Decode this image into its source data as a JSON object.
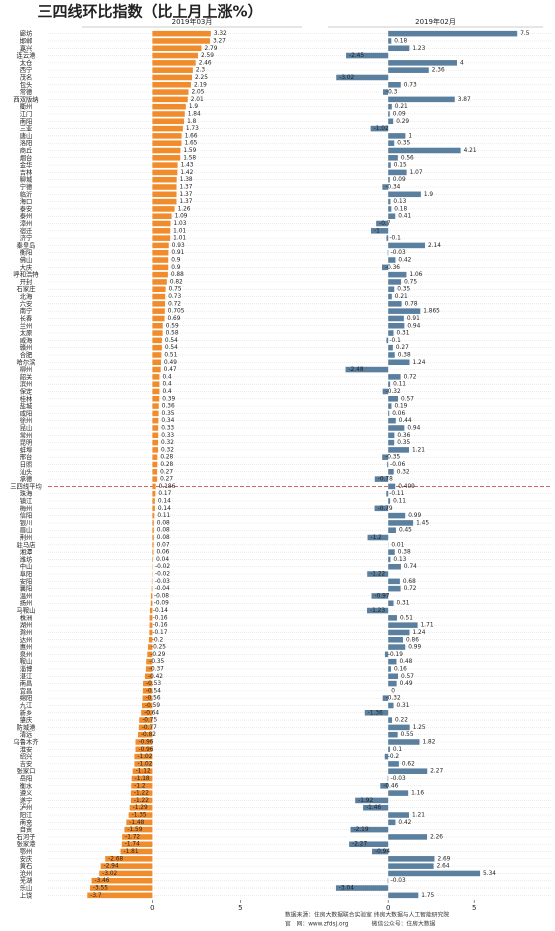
{
  "chart_data": {
    "type": "hbar",
    "title": "三四线环比指数（比上月上涨%）",
    "categories": [
      "廊坊",
      "邯郸",
      "嘉兴",
      "连云港",
      "太仓",
      "西宁",
      "茂名",
      "包头",
      "常德",
      "西双版纳",
      "衢州",
      "江门",
      "南阳",
      "三亚",
      "唐山",
      "洛阳",
      "商丘",
      "烟台",
      "金华",
      "吉林",
      "聊城",
      "宁德",
      "临沂",
      "海口",
      "泰安",
      "泰州",
      "漳州",
      "宿迁",
      "济宁",
      "秦皇岛",
      "衡阳",
      "佛山",
      "大庆",
      "呼和浩特",
      "开封",
      "石家庄",
      "北海",
      "六安",
      "南宁",
      "长春",
      "兰州",
      "太原",
      "威海",
      "赣州",
      "合肥",
      "哈尔滨",
      "柳州",
      "韶关",
      "滨州",
      "保定",
      "桂林",
      "盐城",
      "咸阳",
      "徐州",
      "昆山",
      "常州",
      "昆明",
      "蚌埠",
      "邢台",
      "日照",
      "汕头",
      "承德",
      "三四线平均",
      "珠海",
      "镇江",
      "梅州",
      "信阳",
      "银川",
      "眉山",
      "荆州",
      "驻马店",
      "湘潭",
      "潍坊",
      "中山",
      "阜阳",
      "安阳",
      "襄阳",
      "温州",
      "扬州",
      "马鞍山",
      "株洲",
      "湖州",
      "滁州",
      "达州",
      "惠州",
      "泉州",
      "鞍山",
      "淄博",
      "湛江",
      "南昌",
      "宜昌",
      "绵阳",
      "九江",
      "新乡",
      "肇庆",
      "防城港",
      "清远",
      "乌鲁木齐",
      "淮安",
      "绍兴",
      "吉安",
      "张家口",
      "岳阳",
      "衡水",
      "遵义",
      "遂宁",
      "泸州",
      "阳江",
      "南充",
      "自贡",
      "石河子",
      "张家港",
      "鄂州",
      "安庆",
      "黄石",
      "沧州",
      "芜湖",
      "乐山",
      "上饶"
    ],
    "highlight_index": 62,
    "series": [
      {
        "name": "2019年03月",
        "color": "#f08c2c",
        "xlim": [
          -4,
          8.5
        ],
        "xticks": [
          0,
          5
        ],
        "values": [
          3.32,
          3.27,
          2.79,
          2.59,
          2.46,
          2.3,
          2.25,
          2.19,
          2.05,
          2.01,
          1.9,
          1.84,
          1.8,
          1.73,
          1.66,
          1.65,
          1.59,
          1.58,
          1.43,
          1.42,
          1.38,
          1.37,
          1.37,
          1.37,
          1.26,
          1.09,
          1.03,
          1.01,
          1.01,
          0.93,
          0.91,
          0.9,
          0.9,
          0.88,
          0.82,
          0.75,
          0.73,
          0.72,
          0.705,
          0.69,
          0.59,
          0.58,
          0.54,
          0.54,
          0.51,
          0.49,
          0.47,
          0.4,
          0.4,
          0.4,
          0.39,
          0.36,
          0.35,
          0.34,
          0.33,
          0.33,
          0.32,
          0.32,
          0.28,
          0.28,
          0.27,
          0.27,
          0.186,
          0.17,
          0.14,
          0.14,
          0.11,
          0.08,
          0.08,
          0.08,
          0.07,
          0.06,
          0.04,
          -0.02,
          -0.02,
          -0.03,
          -0.04,
          -0.08,
          -0.09,
          -0.14,
          -0.16,
          -0.16,
          -0.17,
          -0.2,
          -0.25,
          -0.29,
          -0.35,
          -0.37,
          -0.42,
          -0.53,
          -0.54,
          -0.56,
          -0.59,
          -0.64,
          -0.75,
          -0.77,
          -0.82,
          -0.96,
          -0.96,
          -1.02,
          -1.02,
          -1.12,
          -1.18,
          -1.2,
          -1.22,
          -1.22,
          -1.29,
          -1.35,
          -1.48,
          -1.59,
          -1.72,
          -1.74,
          -1.81,
          -2.68,
          -2.94,
          -3.02,
          -3.46,
          -3.55,
          -3.7
        ]
      },
      {
        "name": "2019年02月",
        "color": "#5b7f9e",
        "xlim": [
          -3.5,
          9
        ],
        "xticks": [
          0,
          5
        ],
        "values": [
          7.5,
          0.18,
          1.23,
          -2.45,
          4,
          2.36,
          -3.02,
          0.73,
          -0.3,
          3.87,
          0.21,
          0.09,
          0.29,
          -1.02,
          1,
          0.35,
          4.21,
          0.56,
          0.15,
          1.07,
          0.09,
          -0.34,
          1.9,
          0.13,
          0.18,
          0.41,
          -0.7,
          -1,
          -0.1,
          2.14,
          -0.03,
          0.42,
          -0.36,
          1.06,
          0.75,
          0.35,
          0.21,
          0.78,
          1.865,
          0.91,
          0.94,
          0.31,
          -0.1,
          0.27,
          0.38,
          1.24,
          -2.48,
          0.72,
          0.11,
          -0.32,
          0.57,
          0.19,
          0.06,
          0.44,
          0.94,
          0.36,
          0.35,
          1.21,
          -0.35,
          -0.06,
          0.32,
          -0.78,
          0.409,
          -0.11,
          0.11,
          -0.79,
          0.99,
          1.45,
          0.45,
          -1.2,
          0.01,
          0.38,
          0.13,
          0.74,
          -1.22,
          0.68,
          0.72,
          -0.97,
          0.31,
          -1.23,
          0.51,
          1.71,
          1.24,
          0.86,
          0.99,
          -0.19,
          0.48,
          0.16,
          0.57,
          0.49,
          0,
          -0.32,
          0.31,
          -1.36,
          0.22,
          1.25,
          0.55,
          1.82,
          0.1,
          -0.2,
          0.62,
          2.27,
          -0.03,
          -0.46,
          1.16,
          -1.92,
          -1.46,
          1.21,
          0.42,
          -2.19,
          2.26,
          -2.27,
          -0.94,
          2.69,
          2.64,
          5.34,
          -0.03,
          -3.04,
          1.75
        ]
      }
    ]
  },
  "footer": [
    "数据来源：住房大数据联合实验室  纬房大数据与人工智能研究院",
    "官　网：www.zfdsj.org　　　　微信公众号：住房大数据"
  ]
}
